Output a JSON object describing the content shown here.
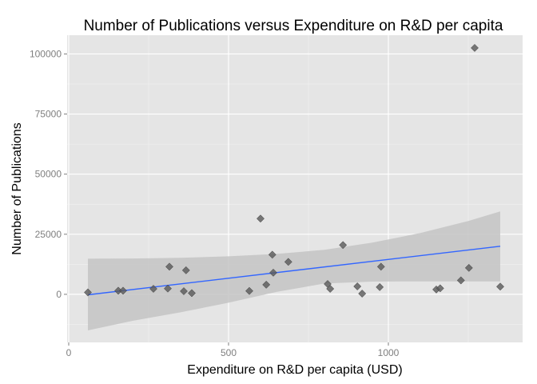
{
  "chart_data": {
    "type": "scatter",
    "title": "Number of Publications versus Expenditure on R&D per capita",
    "xlabel": "Expenditure on R&D per capita (USD)",
    "ylabel": "Number of Publications",
    "xlim": [
      -5,
      1420
    ],
    "ylim": [
      -20000,
      107800
    ],
    "x_ticks": [
      0,
      500,
      1000
    ],
    "x_tick_labels": [
      "0",
      "500",
      "1000"
    ],
    "y_ticks": [
      0,
      25000,
      50000,
      75000,
      100000
    ],
    "y_tick_labels": [
      "0",
      "25000",
      "50000",
      "75000",
      "100000"
    ],
    "grid": true,
    "legend": "none",
    "colors": {
      "panel": "#e5e5e5",
      "grid_major": "#ffffff",
      "grid_minor": "#f2f2f2",
      "point": "#595959",
      "trend_line": "#3366ff",
      "confidence_band": "#c4c4c4",
      "tick_label": "#7f7f7f"
    },
    "points": [
      {
        "x": 60,
        "y": 800
      },
      {
        "x": 155,
        "y": 1500
      },
      {
        "x": 170,
        "y": 1500
      },
      {
        "x": 265,
        "y": 2300
      },
      {
        "x": 310,
        "y": 2400
      },
      {
        "x": 315,
        "y": 11500
      },
      {
        "x": 360,
        "y": 1300
      },
      {
        "x": 367,
        "y": 10000
      },
      {
        "x": 385,
        "y": 500
      },
      {
        "x": 565,
        "y": 1400
      },
      {
        "x": 600,
        "y": 31500
      },
      {
        "x": 618,
        "y": 4000
      },
      {
        "x": 637,
        "y": 16500
      },
      {
        "x": 640,
        "y": 9000
      },
      {
        "x": 687,
        "y": 13500
      },
      {
        "x": 810,
        "y": 4300
      },
      {
        "x": 818,
        "y": 2300
      },
      {
        "x": 858,
        "y": 20500
      },
      {
        "x": 903,
        "y": 3300
      },
      {
        "x": 918,
        "y": 300
      },
      {
        "x": 973,
        "y": 3000
      },
      {
        "x": 977,
        "y": 11500
      },
      {
        "x": 1150,
        "y": 2000
      },
      {
        "x": 1162,
        "y": 2500
      },
      {
        "x": 1227,
        "y": 5800
      },
      {
        "x": 1252,
        "y": 11000
      },
      {
        "x": 1270,
        "y": 102500
      },
      {
        "x": 1350,
        "y": 3200
      }
    ],
    "trend_line": {
      "method": "linear",
      "x": [
        60,
        1350
      ],
      "y": [
        -200,
        20000
      ]
    },
    "confidence_band": {
      "x": [
        60,
        200,
        350,
        500,
        650,
        800,
        950,
        1100,
        1250,
        1350
      ],
      "upper": [
        14800,
        14900,
        15200,
        15800,
        16800,
        18500,
        21500,
        25500,
        30500,
        34500
      ],
      "lower": [
        -15000,
        -11000,
        -7500,
        -3500,
        1000,
        4500,
        5300,
        5400,
        5400,
        5400
      ]
    }
  }
}
